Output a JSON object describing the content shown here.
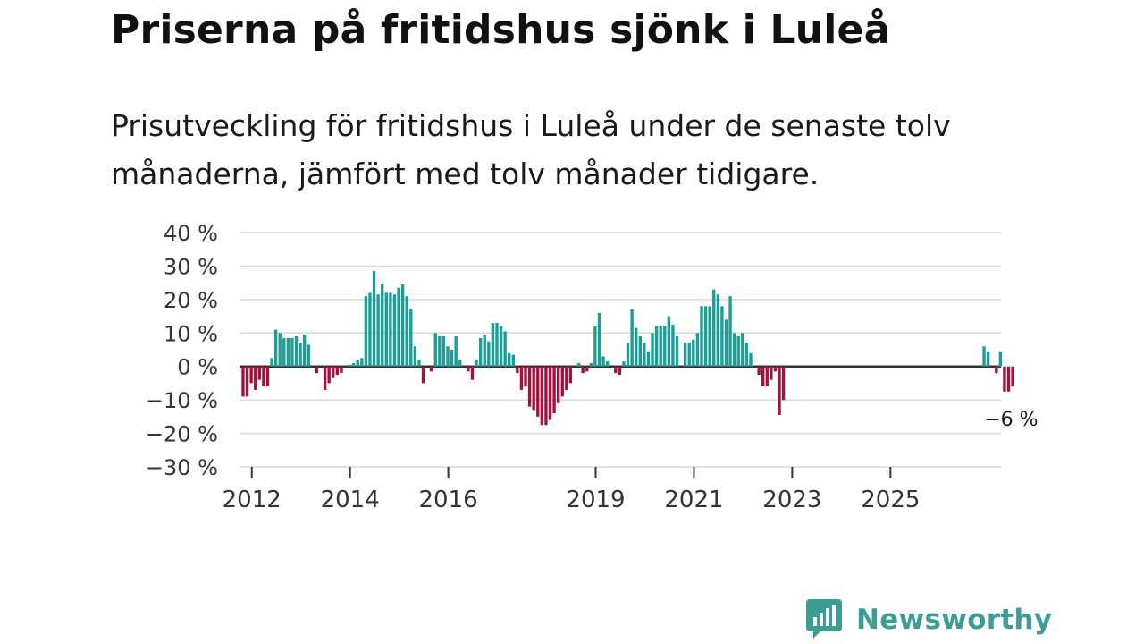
{
  "header": {
    "title": "Priserna på fritidshus sjönk i Luleå",
    "subtitle": "Prisutveckling för fritidshus i Luleå under de senaste tolv månaderna, jämfört med tolv månader tidigare."
  },
  "brand": {
    "name": "Newsworthy",
    "color": "#3a9e95"
  },
  "colors": {
    "positive": "#1a9e96",
    "negative": "#a3123e",
    "zero_line": "#333333",
    "grid": "#d9d9d9"
  },
  "chart_data": {
    "type": "bar",
    "title": "Prisutveckling för fritidshus i Luleå",
    "ylabel": "",
    "xlabel": "",
    "unit": "%",
    "ylim": [
      -30,
      40
    ],
    "yticks": [
      40,
      30,
      20,
      10,
      0,
      -10,
      -20,
      -30
    ],
    "ytick_labels": [
      "40 %",
      "30 %",
      "20 %",
      "10 %",
      "0 %",
      "−10 %",
      "−20 %",
      "−30 %"
    ],
    "xticks": [
      2012,
      2014,
      2016,
      2019,
      2021,
      2023,
      2025
    ],
    "xtick_labels": [
      "2012",
      "2014",
      "2016",
      "2019",
      "2021",
      "2023",
      "2025"
    ],
    "x_start": 2011.75,
    "x_end": 2027.25,
    "step": 0.08333,
    "annotation": {
      "label": "−6 %",
      "value": -6
    },
    "values": [
      -9,
      -9,
      -5,
      -7,
      -4,
      -6,
      -6,
      2.5,
      11,
      10,
      8.5,
      8.5,
      8.5,
      9,
      7,
      9.5,
      6.5,
      null,
      -2,
      null,
      -7,
      -5,
      -3.5,
      -2.5,
      -2,
      null,
      0.5,
      1,
      2,
      2.5,
      21,
      22,
      28.5,
      21.5,
      24.5,
      22,
      22,
      21.5,
      23.5,
      24.5,
      21,
      17,
      6,
      2,
      -5,
      null,
      -1.5,
      10,
      9,
      9,
      6,
      5,
      9,
      2,
      null,
      -1.5,
      -4,
      2,
      8.5,
      9.5,
      7.5,
      13,
      13,
      12,
      10.5,
      4,
      3.5,
      -2,
      -7,
      -6,
      -12,
      -13,
      -15,
      -17.5,
      -17.5,
      -16,
      -14,
      -11,
      -9,
      -7,
      -5,
      null,
      1,
      -2,
      -1.5,
      1,
      12,
      16,
      3,
      1.5,
      null,
      -2,
      -2.5,
      1.5,
      7,
      17,
      11.5,
      9,
      7,
      4.5,
      10,
      12,
      12,
      12,
      15,
      12.5,
      9,
      null,
      7,
      7,
      8,
      10,
      18,
      18,
      18,
      23,
      21.5,
      18,
      14,
      21,
      10,
      9,
      10,
      7,
      4,
      null,
      -2.5,
      -6,
      -6,
      -4,
      -1.5,
      -14.5,
      -10,
      null,
      null,
      null,
      null,
      null,
      null,
      null,
      null,
      null,
      null,
      null,
      null,
      null,
      null,
      null,
      null,
      null,
      null,
      null,
      null,
      null,
      null,
      null,
      null,
      null,
      null,
      null,
      null,
      null,
      null,
      null,
      null,
      null,
      null,
      null,
      null,
      null,
      null,
      null,
      null,
      null,
      null,
      null,
      null,
      null,
      null,
      null,
      null,
      6,
      4.5,
      null,
      -2,
      4.5,
      -7.5,
      -7.5,
      -6
    ]
  }
}
